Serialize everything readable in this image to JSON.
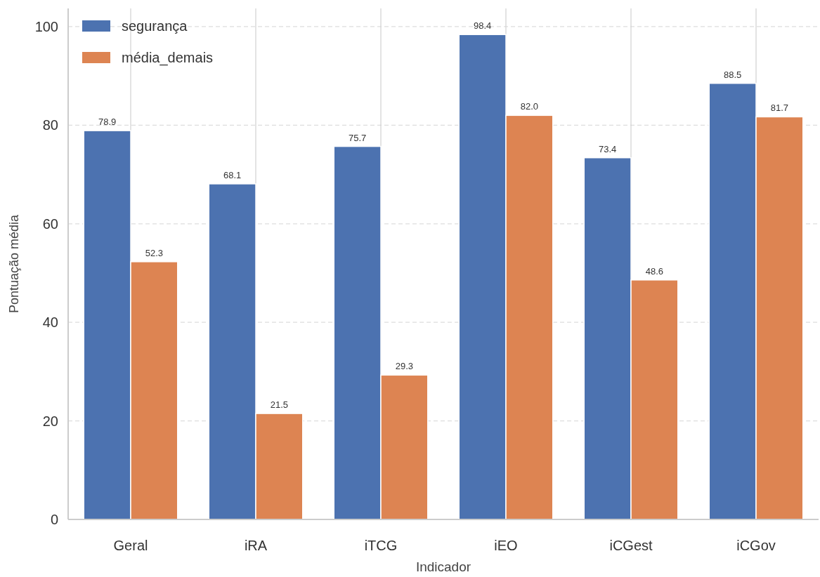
{
  "chart_data": {
    "type": "bar",
    "xlabel": "Indicador",
    "ylabel": "Pontuação média",
    "categories": [
      "Geral",
      "iRA",
      "iTCG",
      "iEO",
      "iCGest",
      "iCGov"
    ],
    "series": [
      {
        "name": "segurança",
        "color": "#4c72b0",
        "values": [
          78.9,
          68.1,
          75.7,
          98.4,
          73.4,
          88.5
        ],
        "value_labels": [
          "78.9",
          "68.1",
          "75.7",
          "98.4",
          "73.4",
          "88.5"
        ]
      },
      {
        "name": "média_demais",
        "color": "#dd8452",
        "values": [
          52.3,
          21.5,
          29.3,
          82.0,
          48.6,
          81.7
        ],
        "value_labels": [
          "52.3",
          "21.5",
          "29.3",
          "82.0",
          "48.6",
          "81.7"
        ]
      }
    ],
    "ylim": [
      0,
      103.7
    ],
    "yticks": [
      0,
      20,
      40,
      60,
      80,
      100
    ],
    "grid": true,
    "legend": "top left"
  }
}
